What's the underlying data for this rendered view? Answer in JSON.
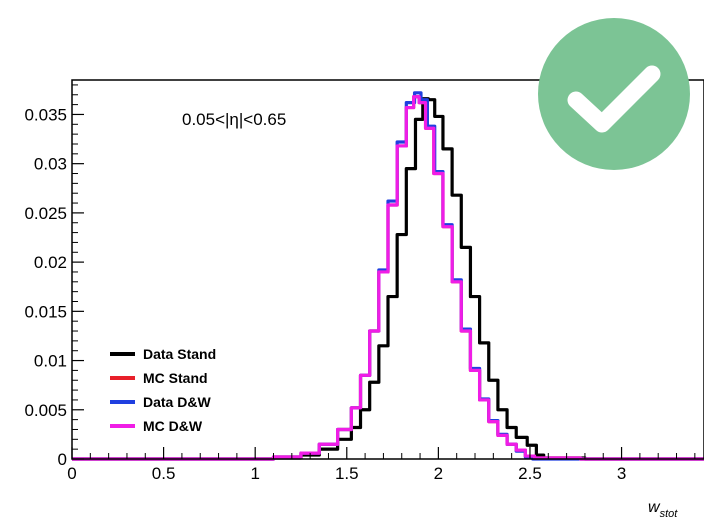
{
  "badge": {
    "icon": "checkmark-icon",
    "color": "#7cc495"
  },
  "chart_data": {
    "type": "line",
    "title": "",
    "annotation": "0.05<|η|<0.65",
    "xlabel": "w",
    "xlabel_subscript": "stot",
    "ylabel": "",
    "xlim": [
      0,
      3.45
    ],
    "ylim": [
      0,
      0.0385
    ],
    "xticks": [
      0,
      0.5,
      1,
      1.5,
      2,
      2.5,
      3
    ],
    "xtick_labels": [
      "0",
      "0.5",
      "1",
      "1.5",
      "2",
      "2.5",
      "3"
    ],
    "yticks": [
      0,
      0.005,
      0.01,
      0.015,
      0.02,
      0.025,
      0.03,
      0.035
    ],
    "ytick_labels": [
      "0",
      "0.005",
      "0.01",
      "0.015",
      "0.02",
      "0.025",
      "0.03",
      "0.035"
    ],
    "grid": false,
    "legend_position": "bottom-left",
    "series": [
      {
        "name": "Data Stand",
        "color": "#000000",
        "x": [
          0.0,
          0.5,
          1.0,
          1.2,
          1.3,
          1.4,
          1.5,
          1.55,
          1.6,
          1.65,
          1.7,
          1.75,
          1.8,
          1.85,
          1.9,
          1.93,
          1.96,
          2.0,
          2.05,
          2.1,
          2.15,
          2.2,
          2.25,
          2.3,
          2.35,
          2.4,
          2.45,
          2.52,
          2.55,
          2.6,
          3.0,
          3.45
        ],
        "y": [
          0.0,
          0.0,
          0.0,
          0.0001,
          0.0004,
          0.001,
          0.002,
          0.0032,
          0.005,
          0.0078,
          0.0115,
          0.0165,
          0.0228,
          0.0295,
          0.0345,
          0.0366,
          0.0365,
          0.0348,
          0.0315,
          0.0268,
          0.0215,
          0.0165,
          0.0118,
          0.008,
          0.005,
          0.0032,
          0.0022,
          0.0014,
          0.0004,
          0.0001,
          0.0,
          0.0
        ]
      },
      {
        "name": "MC Stand",
        "color": "#e8202a",
        "x": [
          0.0,
          0.5,
          1.0,
          1.2,
          1.3,
          1.4,
          1.5,
          1.55,
          1.6,
          1.65,
          1.7,
          1.75,
          1.8,
          1.85,
          1.88,
          1.91,
          1.95,
          2.0,
          2.05,
          2.1,
          2.15,
          2.2,
          2.25,
          2.3,
          2.35,
          2.4,
          2.45,
          2.5,
          2.55,
          3.0,
          3.45
        ],
        "y": [
          0.0,
          0.0,
          0.0,
          0.0002,
          0.0006,
          0.0015,
          0.003,
          0.0052,
          0.0085,
          0.013,
          0.019,
          0.0258,
          0.0318,
          0.0357,
          0.0368,
          0.0362,
          0.0336,
          0.029,
          0.0236,
          0.018,
          0.013,
          0.009,
          0.006,
          0.0038,
          0.0024,
          0.0015,
          0.0009,
          0.0003,
          0.0001,
          0.0,
          0.0
        ]
      },
      {
        "name": "Data D&W",
        "color": "#1f3fe0",
        "x": [
          0.0,
          0.5,
          1.0,
          1.2,
          1.3,
          1.4,
          1.5,
          1.55,
          1.6,
          1.65,
          1.7,
          1.75,
          1.8,
          1.85,
          1.89,
          1.92,
          1.96,
          2.0,
          2.05,
          2.1,
          2.15,
          2.2,
          2.25,
          2.3,
          2.35,
          2.4,
          2.45,
          2.5,
          2.53,
          3.0,
          3.45
        ],
        "y": [
          0.0,
          0.0,
          0.0,
          0.0002,
          0.0006,
          0.0015,
          0.003,
          0.0052,
          0.0085,
          0.013,
          0.0192,
          0.0262,
          0.0322,
          0.0362,
          0.0372,
          0.0365,
          0.0338,
          0.0292,
          0.0238,
          0.0182,
          0.0132,
          0.0092,
          0.0061,
          0.0039,
          0.0025,
          0.0015,
          0.0008,
          0.0002,
          0.0,
          0.0,
          0.0
        ]
      },
      {
        "name": "MC D&W",
        "color": "#f01de6",
        "x": [
          0.0,
          0.5,
          1.0,
          1.2,
          1.3,
          1.4,
          1.5,
          1.55,
          1.6,
          1.65,
          1.7,
          1.75,
          1.8,
          1.85,
          1.88,
          1.91,
          1.95,
          2.0,
          2.05,
          2.1,
          2.15,
          2.2,
          2.25,
          2.3,
          2.35,
          2.4,
          2.45,
          2.5,
          2.55,
          3.0,
          3.45
        ],
        "y": [
          0.0,
          0.0,
          0.0,
          0.0002,
          0.0006,
          0.0015,
          0.003,
          0.0052,
          0.0085,
          0.013,
          0.019,
          0.0258,
          0.0318,
          0.0357,
          0.0368,
          0.0362,
          0.0336,
          0.029,
          0.0236,
          0.018,
          0.013,
          0.009,
          0.006,
          0.0038,
          0.0024,
          0.0015,
          0.0009,
          0.0003,
          0.0001,
          0.0,
          0.0
        ]
      }
    ]
  }
}
